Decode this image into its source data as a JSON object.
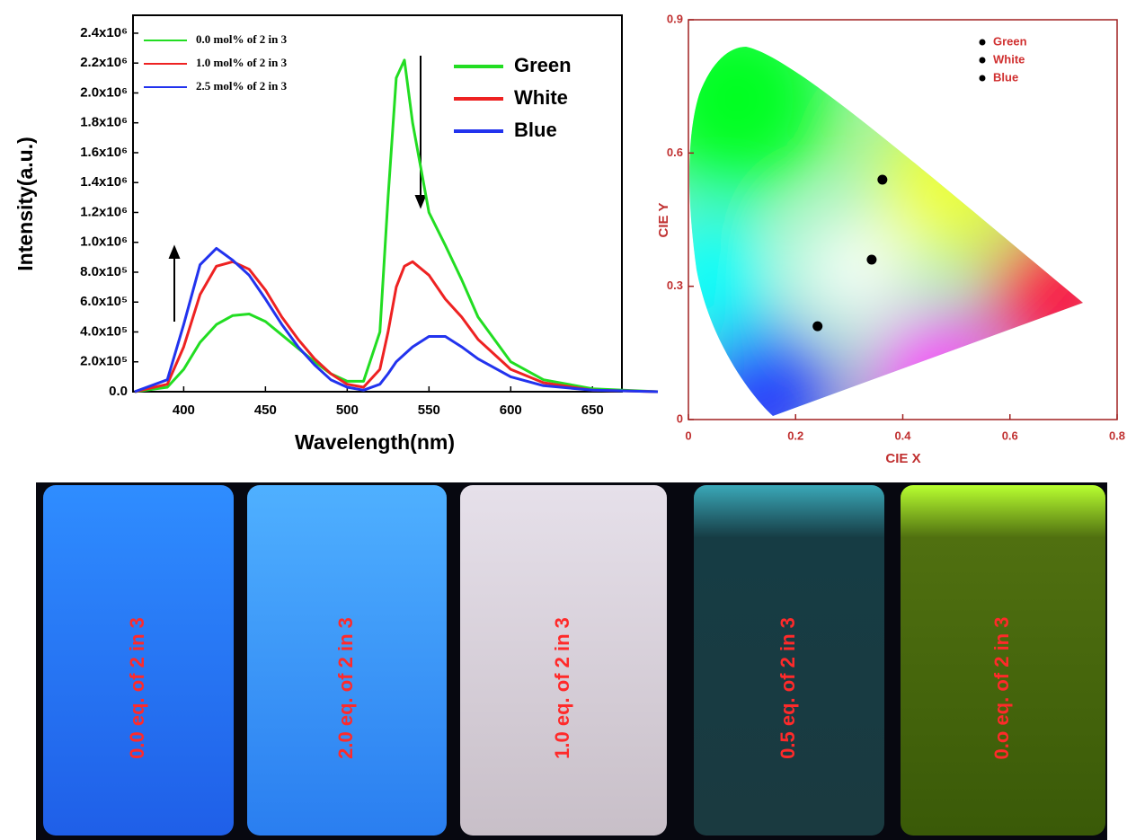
{
  "chart_data": [
    {
      "type": "line",
      "y_label": "Intensity(a.u.)",
      "x_label": "Wavelength(nm)",
      "x": [
        370,
        390,
        400,
        410,
        420,
        430,
        440,
        450,
        460,
        470,
        480,
        490,
        500,
        510,
        520,
        525,
        530,
        535,
        540,
        550,
        560,
        570,
        580,
        600,
        620,
        650,
        690
      ],
      "series": [
        {
          "name": "Green",
          "label": "0.0 mol% of 2 in 3",
          "color": "#22dd22",
          "values": [
            0,
            30000,
            150000,
            330000,
            450000,
            510000,
            520000,
            470000,
            380000,
            290000,
            200000,
            120000,
            70000,
            70000,
            400000,
            1300000,
            2100000,
            2220000,
            1800000,
            1200000,
            980000,
            750000,
            500000,
            200000,
            80000,
            20000,
            0
          ]
        },
        {
          "name": "White",
          "label": "1.0 mol% of 2 in 3",
          "color": "#ee2222",
          "values": [
            0,
            50000,
            300000,
            650000,
            840000,
            870000,
            820000,
            680000,
            500000,
            350000,
            220000,
            120000,
            50000,
            30000,
            150000,
            400000,
            700000,
            840000,
            870000,
            780000,
            620000,
            500000,
            350000,
            150000,
            60000,
            10000,
            0
          ]
        },
        {
          "name": "Blue",
          "label": "2.5 mol% of 2 in 3",
          "color": "#2233ee",
          "values": [
            0,
            80000,
            450000,
            850000,
            960000,
            880000,
            780000,
            620000,
            450000,
            300000,
            180000,
            80000,
            30000,
            10000,
            50000,
            120000,
            200000,
            250000,
            300000,
            370000,
            370000,
            300000,
            220000,
            100000,
            40000,
            10000,
            0
          ]
        }
      ],
      "xlim": [
        369,
        668
      ],
      "xticks": [
        400,
        450,
        500,
        550,
        600,
        650
      ],
      "ylim": [
        0,
        2520000
      ],
      "yticks": [
        {
          "value": 0,
          "label": "0.0"
        },
        {
          "value": 200000,
          "label": "2.0x10⁵"
        },
        {
          "value": 400000,
          "label": "4.0x10⁵"
        },
        {
          "value": 600000,
          "label": "6.0x10⁵"
        },
        {
          "value": 800000,
          "label": "8.0x10⁵"
        },
        {
          "value": 1000000,
          "label": "1.0x10⁶"
        },
        {
          "value": 1200000,
          "label": "1.2x10⁶"
        },
        {
          "value": 1400000,
          "label": "1.4x10⁶"
        },
        {
          "value": 1600000,
          "label": "1.6x10⁶"
        },
        {
          "value": 1800000,
          "label": "1.8x10⁶"
        },
        {
          "value": 2000000,
          "label": "2.0x10⁶"
        },
        {
          "value": 2200000,
          "label": "2.2x10⁶"
        },
        {
          "value": 2400000,
          "label": "2.4x10⁶"
        }
      ]
    },
    {
      "type": "scatter",
      "x_label": "CIE X",
      "y_label": "CIE Y",
      "series": [
        {
          "name": "Green",
          "color": "#000000",
          "x": [
            0.362
          ],
          "values": [
            0.54
          ]
        },
        {
          "name": "White",
          "color": "#000000",
          "x": [
            0.342
          ],
          "values": [
            0.36
          ]
        },
        {
          "name": "Blue",
          "color": "#000000",
          "x": [
            0.241
          ],
          "values": [
            0.21
          ]
        }
      ],
      "xlim": [
        0,
        0.8
      ],
      "xticks": [
        0,
        0.2,
        0.4,
        0.6,
        0.8
      ],
      "ylim": [
        0,
        0.9
      ],
      "yticks": [
        0,
        0.3,
        0.6,
        0.9
      ]
    }
  ],
  "vials": {
    "labels": [
      "0.0 eq. of 2 in 3",
      "2.0 eq. of 2 in 3",
      "1.0 eq. of 2 in 3",
      "0.5 eq. of 2 in 3",
      "0.o eq. of 2 in 3"
    ]
  }
}
